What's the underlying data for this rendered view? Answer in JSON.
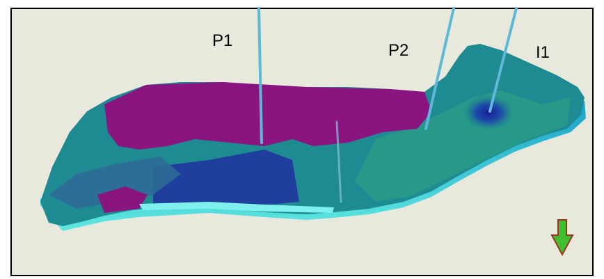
{
  "wells": [
    {
      "label": "P1"
    },
    {
      "label": "P2"
    },
    {
      "label": "I1"
    }
  ]
}
